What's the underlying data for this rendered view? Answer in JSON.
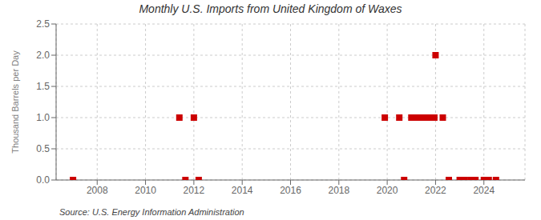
{
  "chart_data": {
    "type": "scatter",
    "title": "Monthly U.S. Imports from United Kingdom of Waxes",
    "ylabel": "Thousand Barrels per Day",
    "annotations": [
      "Source: U.S. Energy Information Administration"
    ],
    "x": [
      2007.0,
      2011.4,
      2011.65,
      2012.0,
      2012.2,
      2019.9,
      2020.5,
      2020.7,
      2021.0,
      2021.2,
      2021.45,
      2021.6,
      2021.75,
      2021.95,
      2022.0,
      2022.3,
      2022.55,
      2023.0,
      2023.2,
      2023.45,
      2023.65,
      2024.0,
      2024.2,
      2024.5
    ],
    "values": [
      0.0,
      1.0,
      0.0,
      1.0,
      0.0,
      1.0,
      1.0,
      0.0,
      1.0,
      1.0,
      1.0,
      1.0,
      1.0,
      1.0,
      2.0,
      1.0,
      0.0,
      0.0,
      0.0,
      0.0,
      0.0,
      0.0,
      0.0,
      0.0
    ],
    "color": "#cc0000",
    "marker": "square",
    "grid": true,
    "xlim": [
      2006.3,
      2025.7
    ],
    "xticks": [
      2008,
      2010,
      2012,
      2014,
      2016,
      2018,
      2020,
      2022,
      2024
    ],
    "ylim": [
      0,
      2.5
    ],
    "yticks": [
      {
        "value": 0,
        "label": "0.0"
      },
      0.5,
      {
        "value": 1,
        "label": "1.0"
      },
      1.5,
      {
        "value": 2,
        "label": "2.0"
      },
      2.5
    ]
  }
}
